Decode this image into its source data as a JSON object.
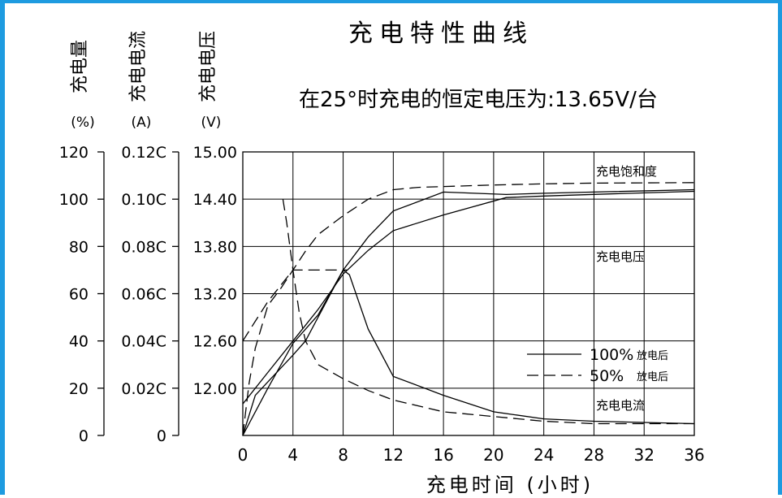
{
  "chart_data": {
    "type": "line",
    "title": "充电特性曲线",
    "subtitle": "在25°时充电的恒定电压为:13.65V/台",
    "xlabel": "充电时间   (小时)",
    "xlim": [
      0,
      36
    ],
    "x_ticks": [
      "0",
      "4",
      "8",
      "12",
      "16",
      "20",
      "24",
      "28",
      "32",
      "36"
    ],
    "grid": true,
    "y_axes": [
      {
        "title": "充电量",
        "unit": "(%)",
        "ylim": [
          0,
          120
        ],
        "ticks": [
          "0",
          "20",
          "40",
          "60",
          "80",
          "100",
          "120"
        ]
      },
      {
        "title": "充电电流",
        "unit": "(A)",
        "ylim": [
          0,
          0.12
        ],
        "ticks": [
          "0",
          "0.02C",
          "0.04C",
          "0.06C",
          "0.08C",
          "0.10C",
          "0.12C"
        ]
      },
      {
        "title": "充电电压",
        "unit": "(V)",
        "ylim": [
          11.4,
          15.0
        ],
        "ticks": [
          "12.00",
          "12.60",
          "13.20",
          "13.80",
          "14.40",
          "15.00"
        ]
      }
    ],
    "legend": {
      "placement": "lower-right",
      "entries": [
        {
          "label": "100%",
          "sublabel": "放电后",
          "style": "solid"
        },
        {
          "label": "50%",
          "sublabel": "放电后",
          "style": "dashed"
        }
      ]
    },
    "annotations": [
      "充电饱和度",
      "充电电压",
      "充电电流"
    ],
    "series": [
      {
        "curve": "充电饱和度",
        "legend": "100%",
        "style": "solid",
        "axis": 0,
        "x": [
          0,
          2,
          4,
          6,
          8,
          10,
          12,
          16,
          21,
          24,
          28,
          36
        ],
        "y": [
          0,
          20,
          39,
          51,
          70,
          84,
          95,
          103,
          102,
          102.5,
          103,
          104
        ]
      },
      {
        "curve": "充电饱和度",
        "legend": "50%",
        "style": "dashed",
        "axis": 0,
        "x": [
          0,
          0.5,
          1,
          2,
          3,
          4,
          5,
          6,
          8,
          10,
          12,
          14,
          20,
          24,
          28,
          36
        ],
        "y": [
          0,
          22,
          37,
          55,
          62,
          70,
          78,
          85,
          93,
          100,
          104,
          105,
          106,
          106.5,
          106.8,
          107
        ]
      },
      {
        "curve": "充电电压",
        "legend": "100%",
        "style": "solid",
        "axis": 2,
        "x": [
          0,
          2,
          4,
          6,
          8,
          10,
          12,
          16,
          21,
          24,
          28,
          36
        ],
        "y": [
          11.8,
          12.2,
          12.6,
          13.0,
          13.45,
          13.75,
          14.0,
          14.2,
          14.42,
          14.44,
          14.46,
          14.5
        ]
      },
      {
        "curve": "充电电压",
        "legend": "50%",
        "style": "dashed",
        "axis": 2,
        "x": [
          0,
          1,
          2,
          3,
          4,
          8,
          8.3
        ],
        "y": [
          12.6,
          12.85,
          13.1,
          13.3,
          13.5,
          13.5,
          13.5
        ]
      },
      {
        "curve": "充电电流",
        "legend": "100%",
        "style": "solid",
        "axis": 1,
        "x": [
          0,
          1,
          4,
          5,
          8,
          8.5,
          10,
          12,
          16,
          20,
          24,
          28,
          36
        ],
        "y": [
          0,
          0.017,
          0.034,
          0.04,
          0.07,
          0.068,
          0.045,
          0.025,
          0.017,
          0.01,
          0.007,
          0.006,
          0.005
        ]
      },
      {
        "curve": "充电电流",
        "legend": "50%",
        "style": "dashed",
        "axis": 1,
        "x": [
          3.2,
          3.5,
          4,
          4.5,
          5,
          6,
          8,
          10,
          12,
          16,
          20,
          24,
          28,
          36
        ],
        "y": [
          0.1,
          0.09,
          0.07,
          0.052,
          0.04,
          0.03,
          0.024,
          0.019,
          0.015,
          0.01,
          0.008,
          0.006,
          0.005,
          0.005
        ]
      }
    ]
  }
}
